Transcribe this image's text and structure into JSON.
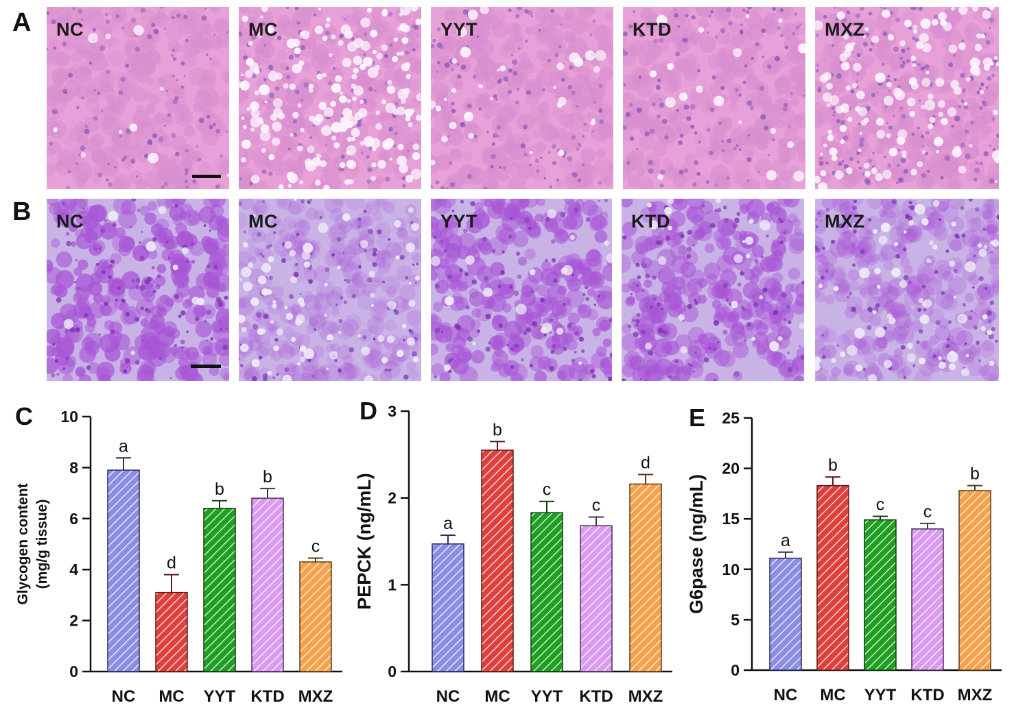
{
  "micrographs": {
    "rowA": {
      "letter": "A",
      "stain": {
        "bg": "#e8a0d8",
        "cell": "#d88fcf",
        "nucleus": "#8a5cb8",
        "vacuole": "#fbf3fb"
      },
      "panels": [
        {
          "label": "NC",
          "vacuole_level": 0.05,
          "nucleus_level": 0.4
        },
        {
          "label": "MC",
          "vacuole_level": 0.9,
          "nucleus_level": 0.3
        },
        {
          "label": "YYT",
          "vacuole_level": 0.15,
          "nucleus_level": 0.45
        },
        {
          "label": "KTD",
          "vacuole_level": 0.08,
          "nucleus_level": 0.45
        },
        {
          "label": "MXZ",
          "vacuole_level": 0.6,
          "nucleus_level": 0.8
        }
      ]
    },
    "rowB": {
      "letter": "B",
      "stain": {
        "bg": "#c9b3e6",
        "cell": "#a855d6",
        "nucleus": "#7b2fb0",
        "vacuole": "#eeeaf6"
      },
      "panels": [
        {
          "label": "NC",
          "stain_level": 0.9
        },
        {
          "label": "MC",
          "stain_level": 0.15
        },
        {
          "label": "YYT",
          "stain_level": 0.8
        },
        {
          "label": "KTD",
          "stain_level": 0.75
        },
        {
          "label": "MXZ",
          "stain_level": 0.3
        }
      ]
    }
  },
  "chart_data": [
    {
      "letter": "C",
      "type": "bar",
      "categories": [
        "NC",
        "MC",
        "YYT",
        "KTD",
        "MXZ"
      ],
      "values": [
        7.9,
        3.1,
        6.4,
        6.8,
        4.3
      ],
      "errors": [
        0.48,
        0.7,
        0.3,
        0.38,
        0.15
      ],
      "significance": [
        "a",
        "d",
        "b",
        "b",
        "c"
      ],
      "ylabel": "Glycogen content\n(mg/g tissue)",
      "ylim": [
        0,
        10
      ],
      "yticks": [
        "0",
        "2",
        "4",
        "6",
        "8",
        "10"
      ],
      "ytick_values": [
        0,
        2,
        4,
        6,
        8,
        10
      ]
    },
    {
      "letter": "D",
      "type": "bar",
      "categories": [
        "NC",
        "MC",
        "YYT",
        "KTD",
        "MXZ"
      ],
      "values": [
        1.47,
        2.55,
        1.83,
        1.68,
        2.16
      ],
      "errors": [
        0.1,
        0.1,
        0.13,
        0.1,
        0.11
      ],
      "significance": [
        "a",
        "b",
        "c",
        "c",
        "d"
      ],
      "ylabel": "PEPCK (ng/mL)",
      "ylim": [
        0,
        3
      ],
      "yticks": [
        "0",
        "1",
        "2",
        "3"
      ],
      "ytick_values": [
        0,
        1,
        2,
        3
      ]
    },
    {
      "letter": "E",
      "type": "bar",
      "categories": [
        "NC",
        "MC",
        "YYT",
        "KTD",
        "MXZ"
      ],
      "values": [
        11.1,
        18.3,
        14.9,
        14.0,
        17.8
      ],
      "errors": [
        0.6,
        0.85,
        0.35,
        0.55,
        0.5
      ],
      "significance": [
        "a",
        "b",
        "c",
        "c",
        "b"
      ],
      "ylabel": "G6pase (ng/mL)",
      "ylim": [
        0,
        25
      ],
      "yticks": [
        "0",
        "5",
        "10",
        "15",
        "20",
        "25"
      ],
      "ytick_values": [
        0,
        5,
        10,
        15,
        20,
        25
      ]
    }
  ],
  "colors": {
    "NC": {
      "fill": "#8c8ee6",
      "stroke": "#2c2c5a"
    },
    "MC": {
      "fill": "#e0403c",
      "stroke": "#5a1a18"
    },
    "YYT": {
      "fill": "#1fa022",
      "stroke": "#0f3d10"
    },
    "KTD": {
      "fill": "#d99af0",
      "stroke": "#4a2f55"
    },
    "MXZ": {
      "fill": "#f7a24b",
      "stroke": "#5a3a18"
    }
  }
}
